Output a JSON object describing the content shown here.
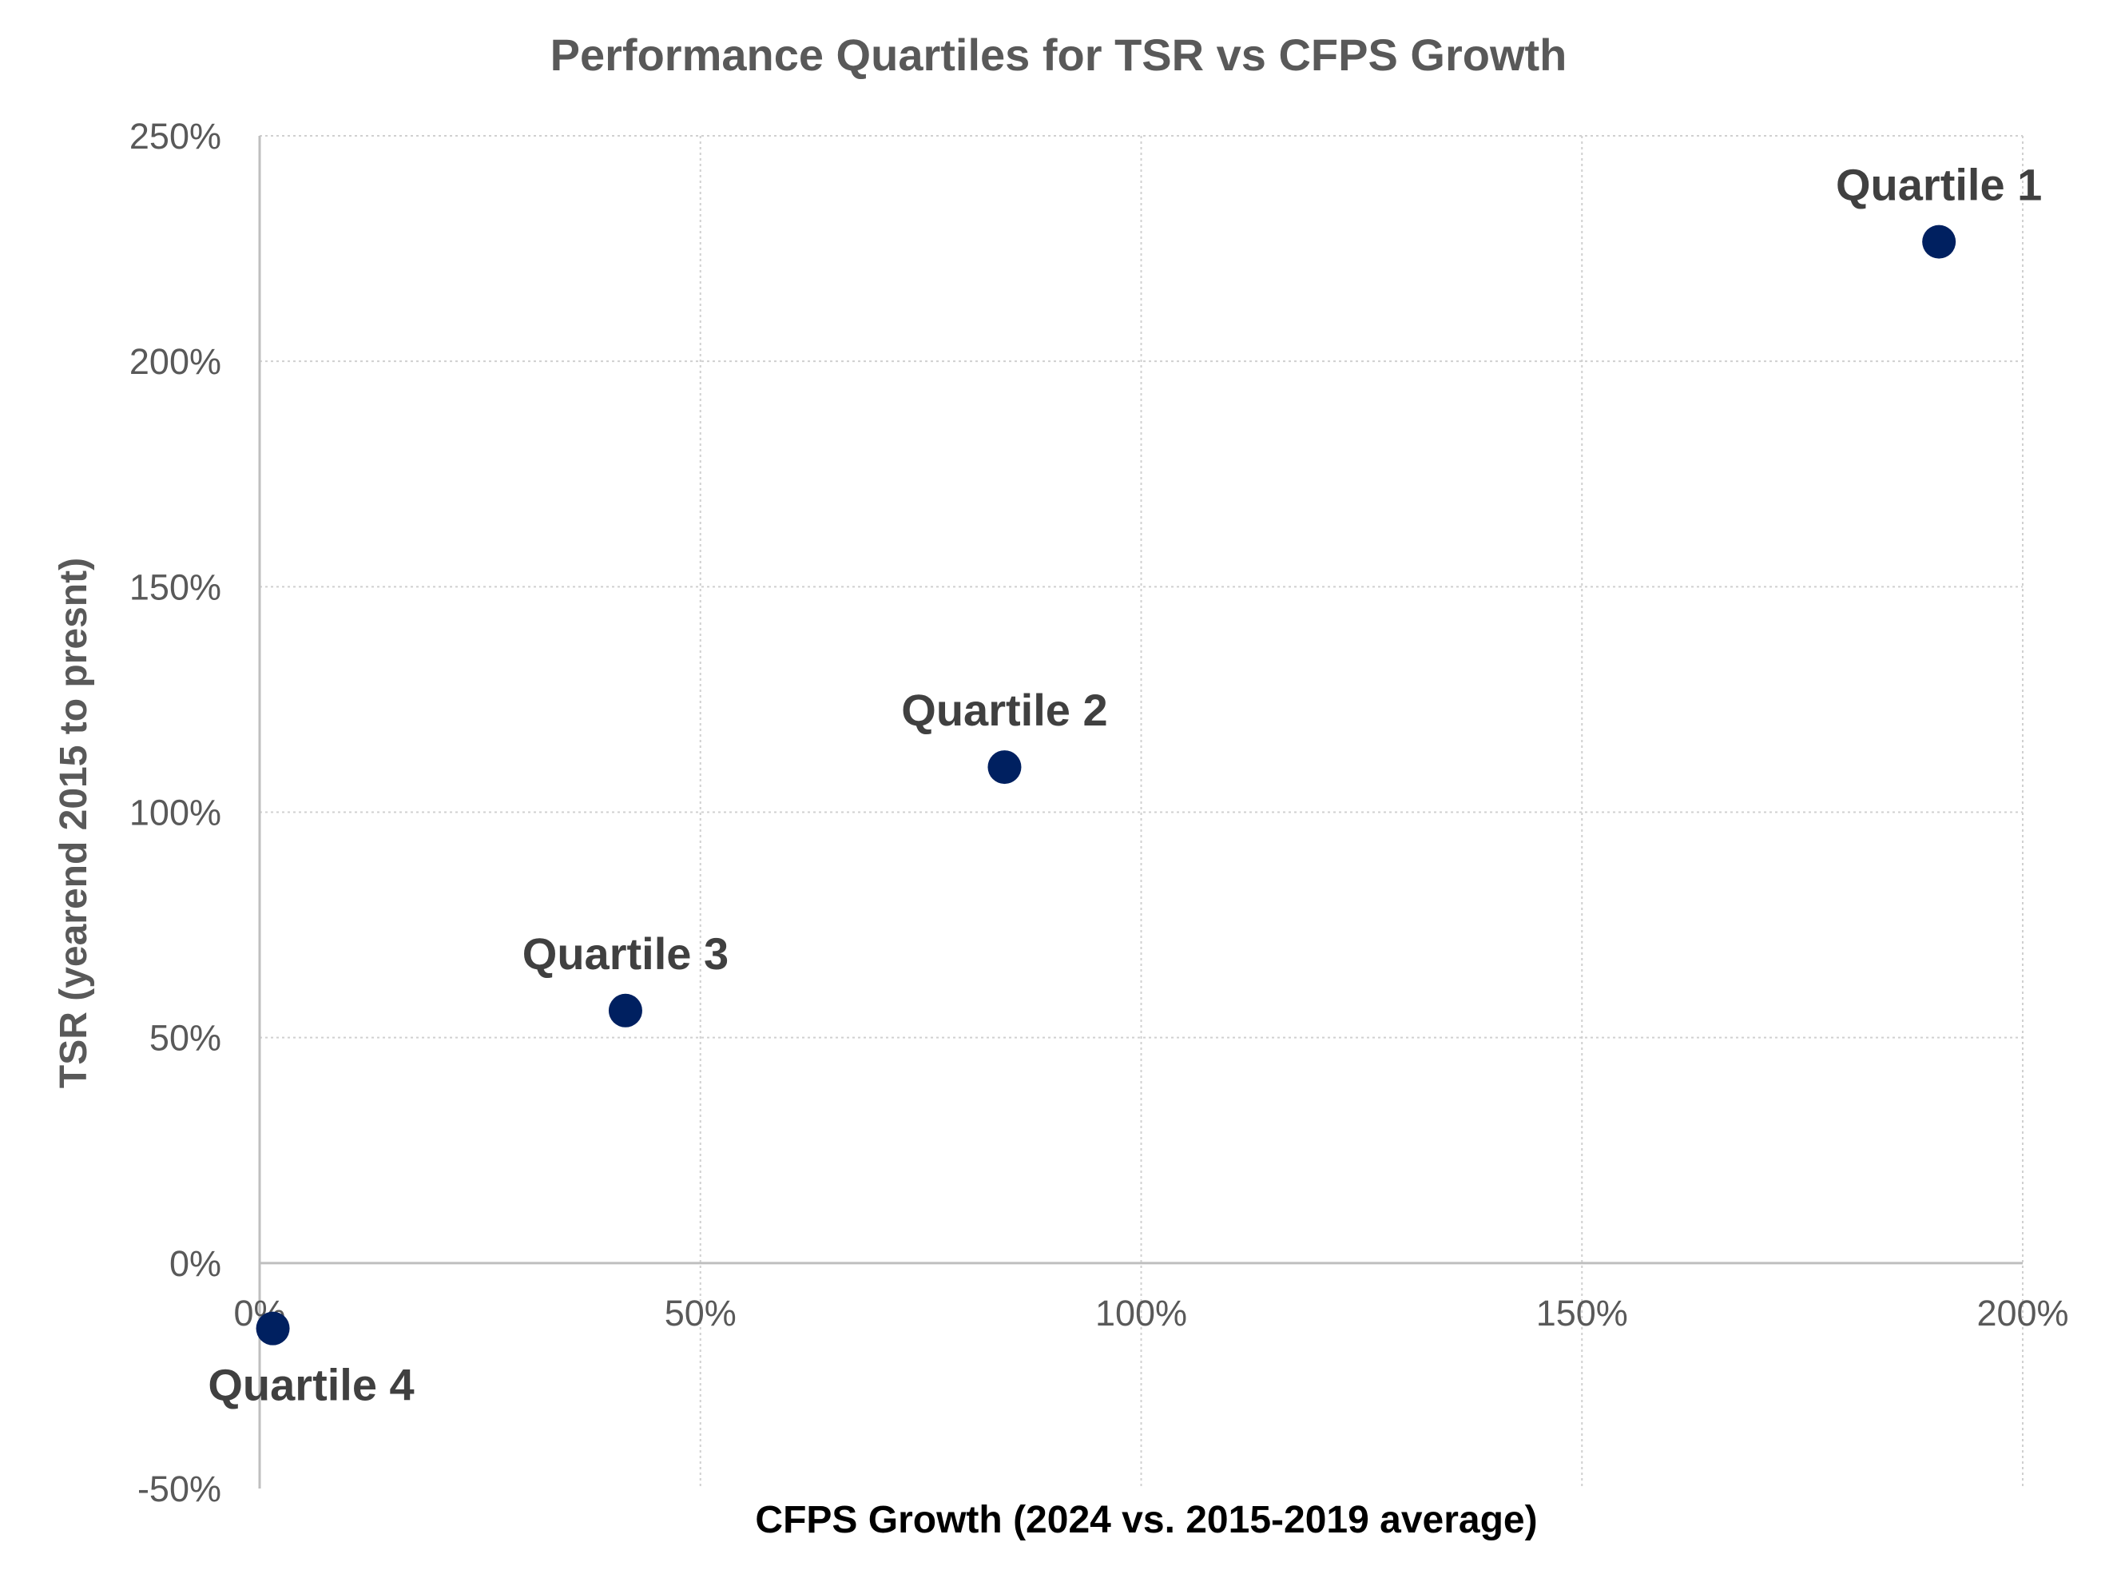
{
  "chart_data": {
    "type": "scatter",
    "title": "Performance Quartiles for TSR vs CFPS Growth",
    "xlabel": "CFPS Growth (2024 vs. 2015-2019 average)",
    "ylabel": "TSR (yearend 2015 to presnt)",
    "xlim": [
      0,
      200
    ],
    "ylim": [
      -50,
      250
    ],
    "x_ticks": [
      0,
      50,
      100,
      150,
      200
    ],
    "y_ticks": [
      -50,
      0,
      50,
      100,
      150,
      200,
      250
    ],
    "x_tick_labels": [
      "0%",
      "50%",
      "100%",
      "150%",
      "200%"
    ],
    "y_tick_labels": [
      "-50%",
      "0%",
      "50%",
      "100%",
      "150%",
      "200%",
      "250%"
    ],
    "grid": true,
    "legend": "none",
    "marker_color": "#002060",
    "points": [
      {
        "label": "Quartile 1",
        "x": 190.5,
        "y": 226.5,
        "label_position": "above"
      },
      {
        "label": "Quartile 2",
        "x": 84.5,
        "y": 110.0,
        "label_position": "above"
      },
      {
        "label": "Quartile 3",
        "x": 41.5,
        "y": 56.0,
        "label_position": "above"
      },
      {
        "label": "Quartile 4",
        "x": 1.5,
        "y": -14.5,
        "label_position": "below"
      }
    ]
  }
}
